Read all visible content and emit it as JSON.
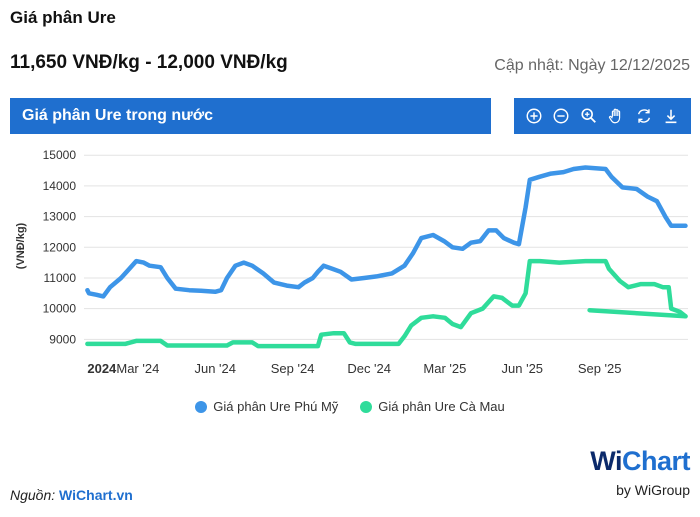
{
  "page": {
    "title": "Giá phân Ure",
    "price_range": "11,650 VNĐ/kg - 12,000 VNĐ/kg",
    "updated": "Cập nhật: Ngày 12/12/2025"
  },
  "chart_header": {
    "title": "Giá phân Ure trong nước"
  },
  "toolbar": [
    {
      "name": "zoom-in-icon"
    },
    {
      "name": "zoom-out-icon"
    },
    {
      "name": "magnifier-icon"
    },
    {
      "name": "pan-hand-icon"
    },
    {
      "name": "reset-icon"
    },
    {
      "name": "download-icon"
    }
  ],
  "source": {
    "label": "Nguồn:",
    "link": "WiChart.vn"
  },
  "logo": {
    "wi": "Wi",
    "chart": "Chart",
    "sub": "by WiGroup"
  },
  "colors": {
    "header": "#1f6fcf",
    "phu_my": "#3d95e8",
    "ca_mau": "#2fdc9a"
  },
  "chart_data": {
    "type": "line",
    "ylabel": "(VNĐ/kg)",
    "ylim": [
      8750,
      15300
    ],
    "yticks": [
      9000,
      10000,
      11000,
      12000,
      13000,
      14000,
      15000
    ],
    "xlim": [
      "2023-12-28",
      "2025-12-15"
    ],
    "xticks": [
      {
        "date": "2024-01-01",
        "label": "2024",
        "bold": true
      },
      {
        "date": "2024-03-01",
        "label": "Mar '24"
      },
      {
        "date": "2024-06-01",
        "label": "Jun '24"
      },
      {
        "date": "2024-09-01",
        "label": "Sep '24"
      },
      {
        "date": "2024-12-01",
        "label": "Dec '24"
      },
      {
        "date": "2025-03-01",
        "label": "Mar '25"
      },
      {
        "date": "2025-06-01",
        "label": "Jun '25"
      },
      {
        "date": "2025-09-01",
        "label": "Sep '25"
      }
    ],
    "grid": true,
    "legend_position": "bottom",
    "series": [
      {
        "name": "Giá phân Ure Phú Mỹ",
        "color": "#3d95e8",
        "points": [
          [
            "2024-01-01",
            10600
          ],
          [
            "2024-01-03",
            10500
          ],
          [
            "2024-01-12",
            10450
          ],
          [
            "2024-01-20",
            10400
          ],
          [
            "2024-01-28",
            10700
          ],
          [
            "2024-02-10",
            11000
          ],
          [
            "2024-02-20",
            11300
          ],
          [
            "2024-02-28",
            11550
          ],
          [
            "2024-03-08",
            11500
          ],
          [
            "2024-03-15",
            11400
          ],
          [
            "2024-03-28",
            11350
          ],
          [
            "2024-04-05",
            11000
          ],
          [
            "2024-04-15",
            10650
          ],
          [
            "2024-05-01",
            10600
          ],
          [
            "2024-05-15",
            10580
          ],
          [
            "2024-06-01",
            10550
          ],
          [
            "2024-06-08",
            10600
          ],
          [
            "2024-06-15",
            11000
          ],
          [
            "2024-06-25",
            11400
          ],
          [
            "2024-07-05",
            11500
          ],
          [
            "2024-07-15",
            11400
          ],
          [
            "2024-07-28",
            11150
          ],
          [
            "2024-08-10",
            10850
          ],
          [
            "2024-08-25",
            10750
          ],
          [
            "2024-09-08",
            10700
          ],
          [
            "2024-09-15",
            10850
          ],
          [
            "2024-09-25",
            11000
          ],
          [
            "2024-10-01",
            11200
          ],
          [
            "2024-10-08",
            11400
          ],
          [
            "2024-10-18",
            11300
          ],
          [
            "2024-10-28",
            11200
          ],
          [
            "2024-11-10",
            10950
          ],
          [
            "2024-11-25",
            11000
          ],
          [
            "2024-12-10",
            11050
          ],
          [
            "2024-12-28",
            11150
          ],
          [
            "2025-01-12",
            11400
          ],
          [
            "2025-01-22",
            11800
          ],
          [
            "2025-02-01",
            12300
          ],
          [
            "2025-02-15",
            12400
          ],
          [
            "2025-02-28",
            12200
          ],
          [
            "2025-03-10",
            12000
          ],
          [
            "2025-03-22",
            11950
          ],
          [
            "2025-04-01",
            12150
          ],
          [
            "2025-04-12",
            12200
          ],
          [
            "2025-04-22",
            12550
          ],
          [
            "2025-05-01",
            12550
          ],
          [
            "2025-05-10",
            12300
          ],
          [
            "2025-05-22",
            12150
          ],
          [
            "2025-05-28",
            12100
          ],
          [
            "2025-06-05",
            13300
          ],
          [
            "2025-06-10",
            14200
          ],
          [
            "2025-06-22",
            14300
          ],
          [
            "2025-07-05",
            14400
          ],
          [
            "2025-07-20",
            14450
          ],
          [
            "2025-08-01",
            14550
          ],
          [
            "2025-08-15",
            14600
          ],
          [
            "2025-09-08",
            14550
          ],
          [
            "2025-09-15",
            14300
          ],
          [
            "2025-09-28",
            13950
          ],
          [
            "2025-10-15",
            13900
          ],
          [
            "2025-10-28",
            13650
          ],
          [
            "2025-11-08",
            13500
          ],
          [
            "2025-11-18",
            13000
          ],
          [
            "2025-11-25",
            12700
          ],
          [
            "2025-12-12",
            12700
          ]
        ]
      },
      {
        "name": "Giá phân Ure Cà Mau",
        "color": "#2fdc9a",
        "points": [
          [
            "2024-01-01",
            8850
          ],
          [
            "2024-02-15",
            8850
          ],
          [
            "2024-02-28",
            8950
          ],
          [
            "2024-03-28",
            8950
          ],
          [
            "2024-04-05",
            8800
          ],
          [
            "2024-06-15",
            8800
          ],
          [
            "2024-06-22",
            8900
          ],
          [
            "2024-07-15",
            8900
          ],
          [
            "2024-07-22",
            8780
          ],
          [
            "2024-10-01",
            8780
          ],
          [
            "2024-10-05",
            9150
          ],
          [
            "2024-10-20",
            9200
          ],
          [
            "2024-11-01",
            9200
          ],
          [
            "2024-11-08",
            8900
          ],
          [
            "2024-11-15",
            8850
          ],
          [
            "2025-01-05",
            8850
          ],
          [
            "2025-01-12",
            9100
          ],
          [
            "2025-01-20",
            9450
          ],
          [
            "2025-02-01",
            9700
          ],
          [
            "2025-02-15",
            9750
          ],
          [
            "2025-03-01",
            9700
          ],
          [
            "2025-03-10",
            9500
          ],
          [
            "2025-03-20",
            9400
          ],
          [
            "2025-04-01",
            9850
          ],
          [
            "2025-04-15",
            10000
          ],
          [
            "2025-04-28",
            10400
          ],
          [
            "2025-05-08",
            10350
          ],
          [
            "2025-05-20",
            10100
          ],
          [
            "2025-05-28",
            10100
          ],
          [
            "2025-06-05",
            10500
          ],
          [
            "2025-06-10",
            11550
          ],
          [
            "2025-06-22",
            11550
          ],
          [
            "2025-07-15",
            11500
          ],
          [
            "2025-08-15",
            11550
          ],
          [
            "2025-09-08",
            11550
          ],
          [
            "2025-09-12",
            11300
          ],
          [
            "2025-09-25",
            10900
          ],
          [
            "2025-10-05",
            10700
          ],
          [
            "2025-10-20",
            10800
          ],
          [
            "2025-11-05",
            10800
          ],
          [
            "2025-11-15",
            10700
          ],
          [
            "2025-11-22",
            10700
          ],
          [
            "2025-11-25",
            10000
          ],
          [
            "2025-12-05",
            9900
          ],
          [
            "2025-12-12",
            9750
          ]
        ],
        "extra_segment": [
          [
            "2025-08-20",
            9950
          ],
          [
            "2025-12-12",
            9750
          ]
        ]
      }
    ]
  }
}
